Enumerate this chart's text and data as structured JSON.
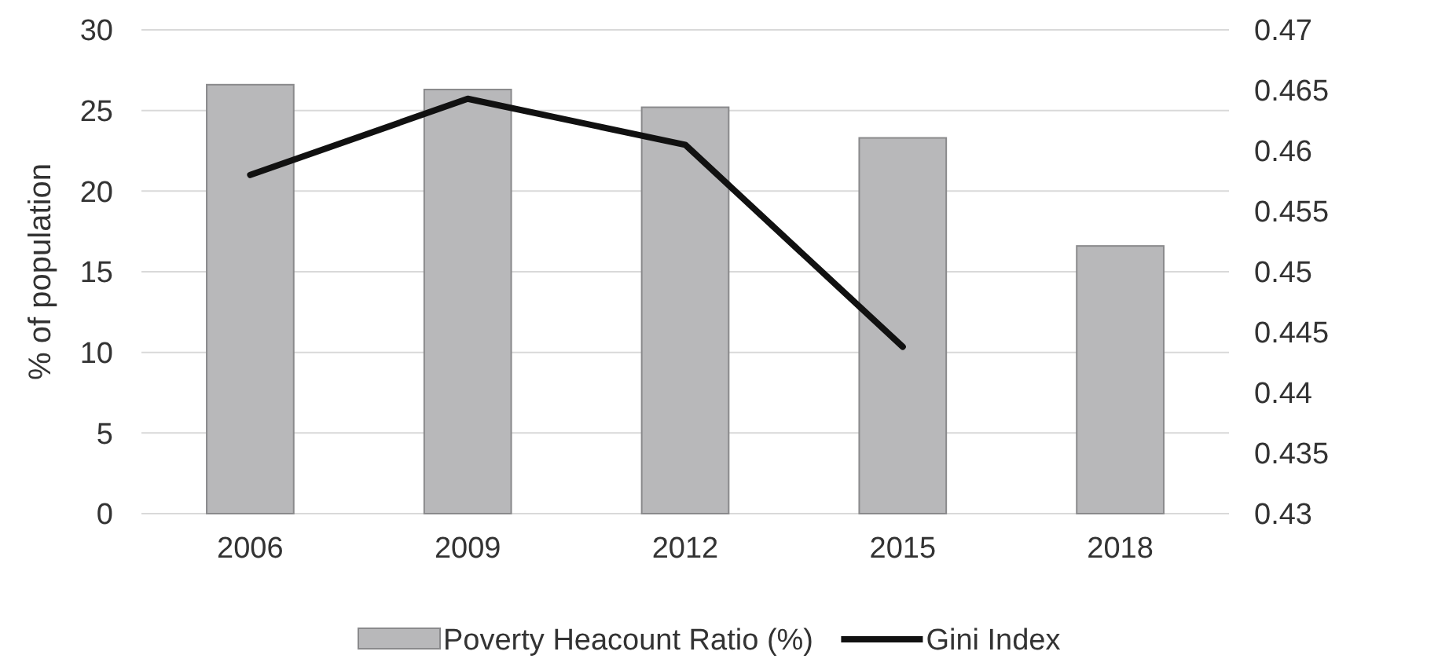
{
  "chart_data": {
    "type": "bar",
    "categories": [
      "2006",
      "2009",
      "2012",
      "2015",
      "2018"
    ],
    "ylabel": "% of population",
    "series": [
      {
        "name": "Poverty Heacount Ratio (%)",
        "color": "#b8b8ba",
        "values": [
          26.6,
          26.3,
          25.2,
          23.3,
          16.6
        ]
      },
      {
        "name": "Gini Index",
        "type": "line",
        "axis": "y2",
        "color": "#111111",
        "values": [
          0.458,
          0.4643,
          0.4605,
          0.4438,
          null
        ]
      }
    ],
    "ylim": [
      0,
      30
    ],
    "yticks": [
      0,
      5,
      10,
      15,
      20,
      25,
      30
    ],
    "y2lim": [
      0.43,
      0.47
    ],
    "y2ticks": [
      0.43,
      0.435,
      0.44,
      0.445,
      0.45,
      0.455,
      0.46,
      0.465,
      0.47
    ],
    "grid": "y",
    "legend": "bottom"
  }
}
